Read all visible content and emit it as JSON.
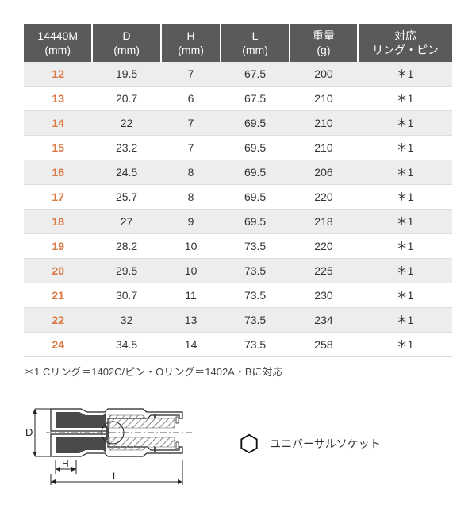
{
  "table": {
    "columns": [
      {
        "line1": "14440M",
        "line2": "(mm)"
      },
      {
        "line1": "D",
        "line2": "(mm)"
      },
      {
        "line1": "H",
        "line2": "(mm)"
      },
      {
        "line1": "L",
        "line2": "(mm)"
      },
      {
        "line1": "重量",
        "line2": "(g)"
      },
      {
        "line1": "対応",
        "line2": "リング・ピン"
      }
    ],
    "rows": [
      {
        "size": "12",
        "d": "19.5",
        "h": "7",
        "l": "67.5",
        "w": "200",
        "r": "＊1"
      },
      {
        "size": "13",
        "d": "20.7",
        "h": "6",
        "l": "67.5",
        "w": "210",
        "r": "＊1"
      },
      {
        "size": "14",
        "d": "22",
        "h": "7",
        "l": "69.5",
        "w": "210",
        "r": "＊1"
      },
      {
        "size": "15",
        "d": "23.2",
        "h": "7",
        "l": "69.5",
        "w": "210",
        "r": "＊1"
      },
      {
        "size": "16",
        "d": "24.5",
        "h": "8",
        "l": "69.5",
        "w": "206",
        "r": "＊1"
      },
      {
        "size": "17",
        "d": "25.7",
        "h": "8",
        "l": "69.5",
        "w": "220",
        "r": "＊1"
      },
      {
        "size": "18",
        "d": "27",
        "h": "9",
        "l": "69.5",
        "w": "218",
        "r": "＊1"
      },
      {
        "size": "19",
        "d": "28.2",
        "h": "10",
        "l": "73.5",
        "w": "220",
        "r": "＊1"
      },
      {
        "size": "20",
        "d": "29.5",
        "h": "10",
        "l": "73.5",
        "w": "225",
        "r": "＊1"
      },
      {
        "size": "21",
        "d": "30.7",
        "h": "11",
        "l": "73.5",
        "w": "230",
        "r": "＊1"
      },
      {
        "size": "22",
        "d": "32",
        "h": "13",
        "l": "73.5",
        "w": "234",
        "r": "＊1"
      },
      {
        "size": "24",
        "d": "34.5",
        "h": "14",
        "l": "73.5",
        "w": "258",
        "r": "＊1"
      }
    ],
    "header_bg": "#5a5a5a",
    "header_fg": "#ffffff",
    "stripe_bg": "#ededed",
    "size_color": "#d97a45",
    "border_color": "#dddddd",
    "col_widths_pct": [
      16,
      16,
      14,
      16,
      16,
      22
    ]
  },
  "footnote": "＊1 Cリング＝1402C/ピン・Oリング＝1402A・Bに対応",
  "socket_label": "ユニバーサルソケット",
  "colors": {
    "text": "#333333",
    "diagram_stroke": "#222222",
    "diagram_fill_dark": "#4a4a4a",
    "diagram_hatch": "#888888",
    "hex_stroke": "#111111"
  }
}
